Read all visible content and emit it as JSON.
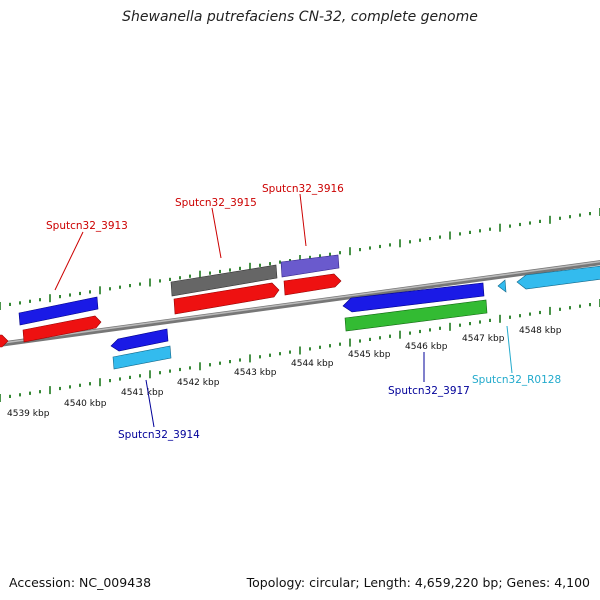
{
  "title": "Shewanella putrefaciens CN-32, complete genome",
  "footer": {
    "accession": "Accession: NC_009438",
    "summary": "Topology: circular; Length: 4,659,220 bp; Genes: 4,100"
  },
  "colors": {
    "backbone": "#8a8a8a",
    "tick": "#1e7a1e",
    "red": "#ee1111",
    "blue": "#1a1ae6",
    "gray": "#666666",
    "purple": "#6a5acd",
    "green": "#33bb33",
    "cyan": "#33bbee",
    "label_red": "#cc0000",
    "label_blue": "#000099",
    "label_cyan": "#22aacc"
  },
  "kbp_labels": [
    "4539 kbp",
    "4540 kbp",
    "4541 kbp",
    "4542 kbp",
    "4543 kbp",
    "4544 kbp",
    "4545 kbp",
    "4546 kbp",
    "4547 kbp",
    "4548 kbp"
  ],
  "genes": [
    {
      "id": "red-left-edge",
      "color": "red"
    },
    {
      "id": "Sputcn32_3913-blue",
      "color": "blue"
    },
    {
      "id": "Sputcn32_3913-red",
      "color": "red"
    },
    {
      "id": "Sputcn32_3914-blue",
      "color": "blue"
    },
    {
      "id": "Sputcn32_3914-cyan",
      "color": "cyan"
    },
    {
      "id": "Sputcn32_3915-gray",
      "color": "gray"
    },
    {
      "id": "Sputcn32_3915-red",
      "color": "red"
    },
    {
      "id": "Sputcn32_3916-purple",
      "color": "purple"
    },
    {
      "id": "Sputcn32_3916-red",
      "color": "red"
    },
    {
      "id": "Sputcn32_3917-blue",
      "color": "blue"
    },
    {
      "id": "Sputcn32_3917-green",
      "color": "green"
    },
    {
      "id": "Sputcn32_R0128-small",
      "color": "cyan"
    },
    {
      "id": "Sputcn32_R0128-cyan",
      "color": "cyan"
    }
  ],
  "gene_labels": [
    {
      "text": "Sputcn32_3913",
      "color": "label_red"
    },
    {
      "text": "Sputcn32_3915",
      "color": "label_red"
    },
    {
      "text": "Sputcn32_3916",
      "color": "label_red"
    },
    {
      "text": "Sputcn32_3914",
      "color": "label_blue"
    },
    {
      "text": "Sputcn32_3917",
      "color": "label_blue"
    },
    {
      "text": "Sputcn32_R0128",
      "color": "label_cyan"
    }
  ]
}
